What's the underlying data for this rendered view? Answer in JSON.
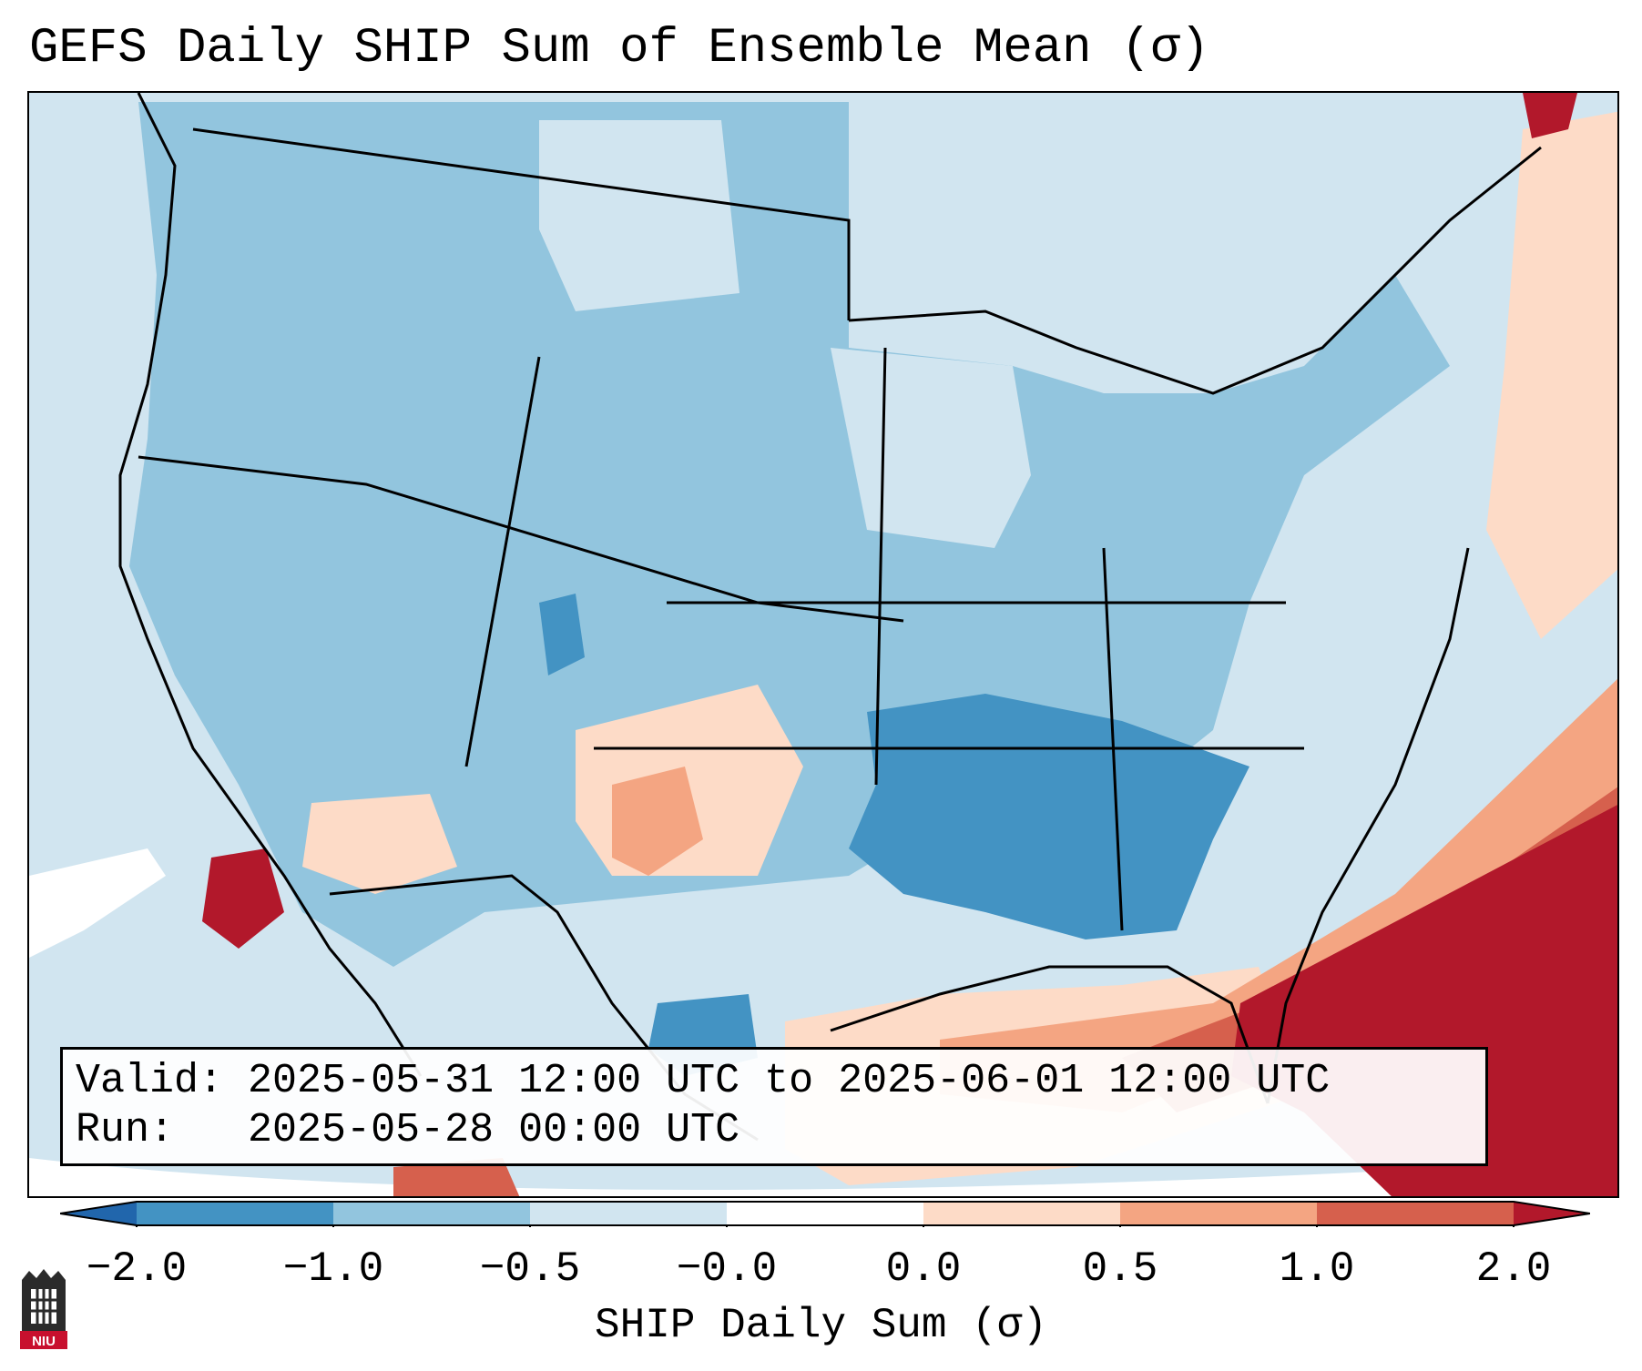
{
  "title": "GEFS Daily SHIP Sum of Ensemble Mean (σ)",
  "info": {
    "valid_label": "Valid:",
    "valid_value": "2025-05-31 12:00 UTC to 2025-06-01 12:00 UTC",
    "run_label": "Run:",
    "run_value": "2025-05-28 00:00 UTC"
  },
  "colorbar": {
    "label": "SHIP Daily Sum (σ)",
    "ticks": [
      "−2.0",
      "−1.0",
      "−0.5",
      "−0.0",
      "0.0",
      "0.5",
      "1.0",
      "2.0"
    ],
    "colors": {
      "extend_low": "#2166ac",
      "lt_neg2": "#4393c3",
      "neg2_neg1": "#4393c3",
      "neg1_neg05": "#92c5de",
      "neg05_0": "#d1e5f0",
      "zero": "#ffffff",
      "p0_05": "#fddbc7",
      "p05_1": "#f4a582",
      "p1_2": "#d6604d",
      "gt2": "#b2182b"
    }
  },
  "map": {
    "ocean_background": "#d1e5f0",
    "region": "Contiguous United States"
  },
  "logo": {
    "text": "NIU"
  }
}
